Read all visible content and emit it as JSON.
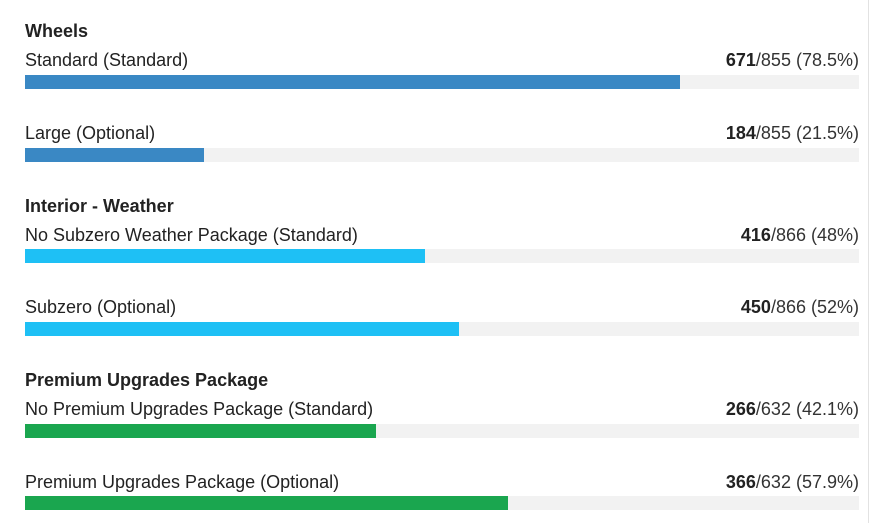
{
  "groups": [
    {
      "title": "Wheels",
      "color": "#3a88c4",
      "options": [
        {
          "label": "Standard (Standard)",
          "count": "671",
          "total": "/855",
          "pct": " (78.5%)",
          "fraction": 0.785
        },
        {
          "label": "Large (Optional)",
          "count": "184",
          "total": "/855",
          "pct": " (21.5%)",
          "fraction": 0.215
        }
      ]
    },
    {
      "title": "Interior - Weather",
      "color": "#1ec0f5",
      "options": [
        {
          "label": "No Subzero Weather Package (Standard)",
          "count": "416",
          "total": "/866",
          "pct": " (48%)",
          "fraction": 0.48
        },
        {
          "label": "Subzero (Optional)",
          "count": "450",
          "total": "/866",
          "pct": " (52%)",
          "fraction": 0.52
        }
      ]
    },
    {
      "title": "Premium Upgrades Package",
      "color": "#1aa64f",
      "options": [
        {
          "label": "No Premium Upgrades Package (Standard)",
          "count": "266",
          "total": "/632",
          "pct": " (42.1%)",
          "fraction": 0.421
        },
        {
          "label": "Premium Upgrades Package (Optional)",
          "count": "366",
          "total": "/632",
          "pct": " (57.9%)",
          "fraction": 0.579
        }
      ]
    }
  ]
}
